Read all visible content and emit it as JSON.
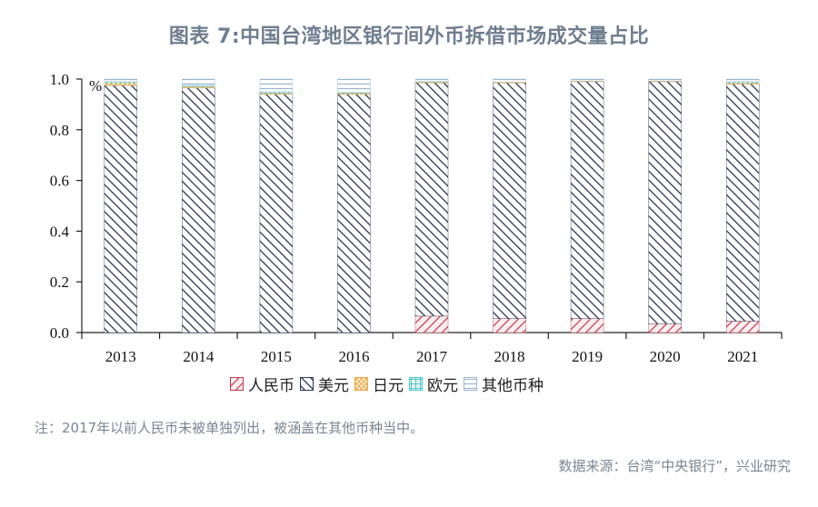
{
  "title": "图表 7:中国台湾地区银行间外币拆借市场成交量占比",
  "unit_label": "%",
  "note": "注：2017年以前人民币未被单独列出，被涵盖在其他币种当中。",
  "source": "数据来源：台湾“中央银行”，兴业研究",
  "legend": [
    {
      "label": "人民币",
      "color": "#c0394b"
    },
    {
      "label": "美元",
      "color": "#2b3550"
    },
    {
      "label": "日元",
      "color": "#e8a94a"
    },
    {
      "label": "欧元",
      "color": "#4fc9c9"
    },
    {
      "label": "其他币种",
      "color": "#9ab6cc"
    }
  ],
  "chart_data": {
    "type": "bar",
    "stacked": true,
    "title": "图表 7:中国台湾地区银行间外币拆借市场成交量占比",
    "xlabel": "",
    "ylabel": "%",
    "ylim": [
      0,
      1.0
    ],
    "yticks": [
      "0.0",
      "0.2",
      "0.4",
      "0.6",
      "0.8",
      "1.0"
    ],
    "grid": false,
    "legend_position": "bottom",
    "categories": [
      "2013",
      "2014",
      "2015",
      "2016",
      "2017",
      "2018",
      "2019",
      "2020",
      "2021"
    ],
    "series": [
      {
        "name": "人民币",
        "values": [
          0,
          0,
          0,
          0,
          0.065,
          0.055,
          0.055,
          0.035,
          0.045
        ]
      },
      {
        "name": "美元",
        "values": [
          0.975,
          0.965,
          0.94,
          0.94,
          0.92,
          0.93,
          0.935,
          0.955,
          0.935
        ]
      },
      {
        "name": "日元",
        "values": [
          0.01,
          0.005,
          0.005,
          0.005,
          0.003,
          0.003,
          0.002,
          0.002,
          0.005
        ]
      },
      {
        "name": "欧元",
        "values": [
          0.005,
          0.005,
          0.005,
          0.002,
          0.002,
          0,
          0,
          0,
          0.005
        ]
      },
      {
        "name": "其他币种",
        "values": [
          0.01,
          0.025,
          0.05,
          0.053,
          0.01,
          0.012,
          0.008,
          0.008,
          0.01
        ]
      }
    ]
  }
}
